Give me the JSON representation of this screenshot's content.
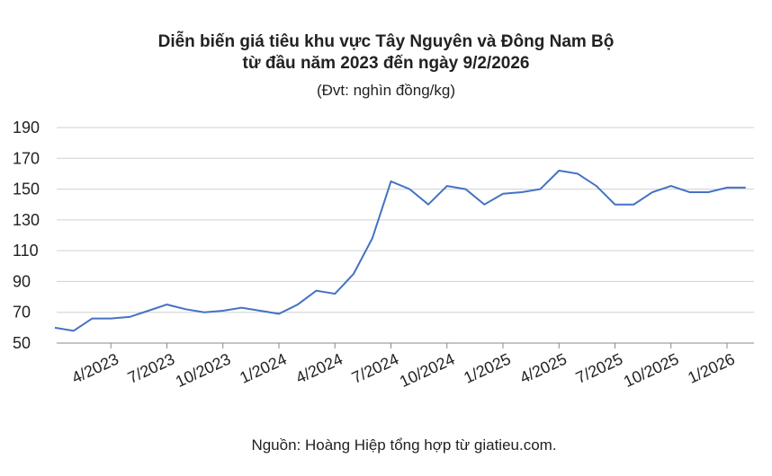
{
  "chart_data": {
    "type": "line",
    "title_lines": [
      "Diễn biến giá tiêu khu vực Tây Nguyên và Đông Nam Bộ",
      "từ đầu năm 2023 đến ngày 9/2/2026"
    ],
    "subtitle": "(Đvt: nghìn đồng/kg)",
    "source": "Nguồn: Hoàng Hiệp tổng hợp từ giatieu.com.",
    "categories": [
      null,
      null,
      null,
      "4/2023",
      null,
      null,
      "7/2023",
      null,
      null,
      "10/2023",
      null,
      null,
      "1/2024",
      null,
      null,
      "4/2024",
      null,
      null,
      "7/2024",
      null,
      null,
      "10/2024",
      null,
      null,
      "1/2025",
      null,
      null,
      "4/2025",
      null,
      null,
      "7/2025",
      null,
      null,
      "10/2025",
      null,
      null,
      "1/2026",
      null
    ],
    "series": [
      {
        "name": "Giá tiêu",
        "color": "#4472c4",
        "values": [
          60,
          58,
          66,
          66,
          67,
          71,
          75,
          72,
          70,
          71,
          73,
          71,
          69,
          75,
          84,
          82,
          95,
          118,
          155,
          150,
          140,
          152,
          150,
          140,
          147,
          148,
          150,
          162,
          160,
          152,
          140,
          140,
          148,
          152,
          148,
          148,
          151,
          151
        ]
      }
    ],
    "ylim": [
      50,
      190
    ],
    "yticks": [
      50,
      70,
      90,
      110,
      130,
      150,
      170,
      190
    ],
    "grid": true
  }
}
